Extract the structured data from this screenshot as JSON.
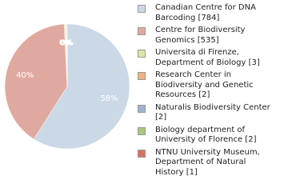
{
  "chart_data": {
    "type": "pie",
    "categories": [
      "Canadian Centre for DNA Barcoding [784]",
      "Centre for Biodiversity Genomics [535]",
      "Universita di Firenze, Department of Biology [3]",
      "Research Center in Biodiversity and Genetic Resources [2]",
      "Naturalis Biodiversity Center [2]",
      "Biology department of University of Florence [2]",
      "NTNU University Museum, Department of Natural History [1]"
    ],
    "values": [
      784,
      535,
      3,
      2,
      2,
      2,
      1
    ],
    "slice_labels": [
      "58%",
      "40%",
      "0%",
      "0%",
      "0%",
      "0%",
      "0%"
    ],
    "colors": [
      "#cbd8e6",
      "#e0a99f",
      "#dbe6a6",
      "#f0b27e",
      "#9fb3d1",
      "#a9c67f",
      "#d9705f"
    ]
  }
}
